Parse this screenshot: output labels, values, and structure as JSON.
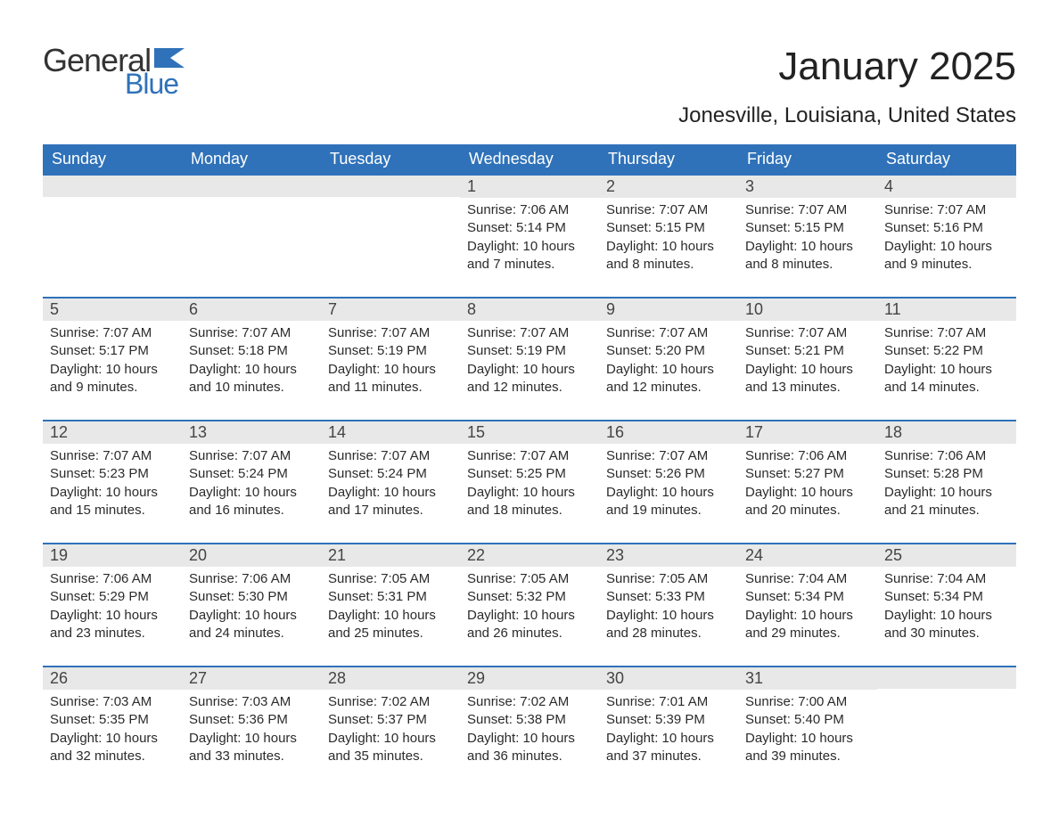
{
  "brand": {
    "word1": "General",
    "word2": "Blue",
    "word1_color": "#333333",
    "word2_color": "#2f72b9",
    "flag_color": "#2f72b9"
  },
  "header": {
    "month_title": "January 2025",
    "location": "Jonesville, Louisiana, United States"
  },
  "colors": {
    "header_bg": "#2f72b9",
    "header_text": "#ffffff",
    "row_divider": "#2f72b9",
    "daynum_bg": "#e8e8e8",
    "text": "#2b2b2b",
    "background": "#ffffff"
  },
  "weekdays": [
    "Sunday",
    "Monday",
    "Tuesday",
    "Wednesday",
    "Thursday",
    "Friday",
    "Saturday"
  ],
  "weeks": [
    [
      null,
      null,
      null,
      {
        "num": "1",
        "sunrise": "Sunrise: 7:06 AM",
        "sunset": "Sunset: 5:14 PM",
        "daylight": "Daylight: 10 hours and 7 minutes."
      },
      {
        "num": "2",
        "sunrise": "Sunrise: 7:07 AM",
        "sunset": "Sunset: 5:15 PM",
        "daylight": "Daylight: 10 hours and 8 minutes."
      },
      {
        "num": "3",
        "sunrise": "Sunrise: 7:07 AM",
        "sunset": "Sunset: 5:15 PM",
        "daylight": "Daylight: 10 hours and 8 minutes."
      },
      {
        "num": "4",
        "sunrise": "Sunrise: 7:07 AM",
        "sunset": "Sunset: 5:16 PM",
        "daylight": "Daylight: 10 hours and 9 minutes."
      }
    ],
    [
      {
        "num": "5",
        "sunrise": "Sunrise: 7:07 AM",
        "sunset": "Sunset: 5:17 PM",
        "daylight": "Daylight: 10 hours and 9 minutes."
      },
      {
        "num": "6",
        "sunrise": "Sunrise: 7:07 AM",
        "sunset": "Sunset: 5:18 PM",
        "daylight": "Daylight: 10 hours and 10 minutes."
      },
      {
        "num": "7",
        "sunrise": "Sunrise: 7:07 AM",
        "sunset": "Sunset: 5:19 PM",
        "daylight": "Daylight: 10 hours and 11 minutes."
      },
      {
        "num": "8",
        "sunrise": "Sunrise: 7:07 AM",
        "sunset": "Sunset: 5:19 PM",
        "daylight": "Daylight: 10 hours and 12 minutes."
      },
      {
        "num": "9",
        "sunrise": "Sunrise: 7:07 AM",
        "sunset": "Sunset: 5:20 PM",
        "daylight": "Daylight: 10 hours and 12 minutes."
      },
      {
        "num": "10",
        "sunrise": "Sunrise: 7:07 AM",
        "sunset": "Sunset: 5:21 PM",
        "daylight": "Daylight: 10 hours and 13 minutes."
      },
      {
        "num": "11",
        "sunrise": "Sunrise: 7:07 AM",
        "sunset": "Sunset: 5:22 PM",
        "daylight": "Daylight: 10 hours and 14 minutes."
      }
    ],
    [
      {
        "num": "12",
        "sunrise": "Sunrise: 7:07 AM",
        "sunset": "Sunset: 5:23 PM",
        "daylight": "Daylight: 10 hours and 15 minutes."
      },
      {
        "num": "13",
        "sunrise": "Sunrise: 7:07 AM",
        "sunset": "Sunset: 5:24 PM",
        "daylight": "Daylight: 10 hours and 16 minutes."
      },
      {
        "num": "14",
        "sunrise": "Sunrise: 7:07 AM",
        "sunset": "Sunset: 5:24 PM",
        "daylight": "Daylight: 10 hours and 17 minutes."
      },
      {
        "num": "15",
        "sunrise": "Sunrise: 7:07 AM",
        "sunset": "Sunset: 5:25 PM",
        "daylight": "Daylight: 10 hours and 18 minutes."
      },
      {
        "num": "16",
        "sunrise": "Sunrise: 7:07 AM",
        "sunset": "Sunset: 5:26 PM",
        "daylight": "Daylight: 10 hours and 19 minutes."
      },
      {
        "num": "17",
        "sunrise": "Sunrise: 7:06 AM",
        "sunset": "Sunset: 5:27 PM",
        "daylight": "Daylight: 10 hours and 20 minutes."
      },
      {
        "num": "18",
        "sunrise": "Sunrise: 7:06 AM",
        "sunset": "Sunset: 5:28 PM",
        "daylight": "Daylight: 10 hours and 21 minutes."
      }
    ],
    [
      {
        "num": "19",
        "sunrise": "Sunrise: 7:06 AM",
        "sunset": "Sunset: 5:29 PM",
        "daylight": "Daylight: 10 hours and 23 minutes."
      },
      {
        "num": "20",
        "sunrise": "Sunrise: 7:06 AM",
        "sunset": "Sunset: 5:30 PM",
        "daylight": "Daylight: 10 hours and 24 minutes."
      },
      {
        "num": "21",
        "sunrise": "Sunrise: 7:05 AM",
        "sunset": "Sunset: 5:31 PM",
        "daylight": "Daylight: 10 hours and 25 minutes."
      },
      {
        "num": "22",
        "sunrise": "Sunrise: 7:05 AM",
        "sunset": "Sunset: 5:32 PM",
        "daylight": "Daylight: 10 hours and 26 minutes."
      },
      {
        "num": "23",
        "sunrise": "Sunrise: 7:05 AM",
        "sunset": "Sunset: 5:33 PM",
        "daylight": "Daylight: 10 hours and 28 minutes."
      },
      {
        "num": "24",
        "sunrise": "Sunrise: 7:04 AM",
        "sunset": "Sunset: 5:34 PM",
        "daylight": "Daylight: 10 hours and 29 minutes."
      },
      {
        "num": "25",
        "sunrise": "Sunrise: 7:04 AM",
        "sunset": "Sunset: 5:34 PM",
        "daylight": "Daylight: 10 hours and 30 minutes."
      }
    ],
    [
      {
        "num": "26",
        "sunrise": "Sunrise: 7:03 AM",
        "sunset": "Sunset: 5:35 PM",
        "daylight": "Daylight: 10 hours and 32 minutes."
      },
      {
        "num": "27",
        "sunrise": "Sunrise: 7:03 AM",
        "sunset": "Sunset: 5:36 PM",
        "daylight": "Daylight: 10 hours and 33 minutes."
      },
      {
        "num": "28",
        "sunrise": "Sunrise: 7:02 AM",
        "sunset": "Sunset: 5:37 PM",
        "daylight": "Daylight: 10 hours and 35 minutes."
      },
      {
        "num": "29",
        "sunrise": "Sunrise: 7:02 AM",
        "sunset": "Sunset: 5:38 PM",
        "daylight": "Daylight: 10 hours and 36 minutes."
      },
      {
        "num": "30",
        "sunrise": "Sunrise: 7:01 AM",
        "sunset": "Sunset: 5:39 PM",
        "daylight": "Daylight: 10 hours and 37 minutes."
      },
      {
        "num": "31",
        "sunrise": "Sunrise: 7:00 AM",
        "sunset": "Sunset: 5:40 PM",
        "daylight": "Daylight: 10 hours and 39 minutes."
      },
      null
    ]
  ]
}
